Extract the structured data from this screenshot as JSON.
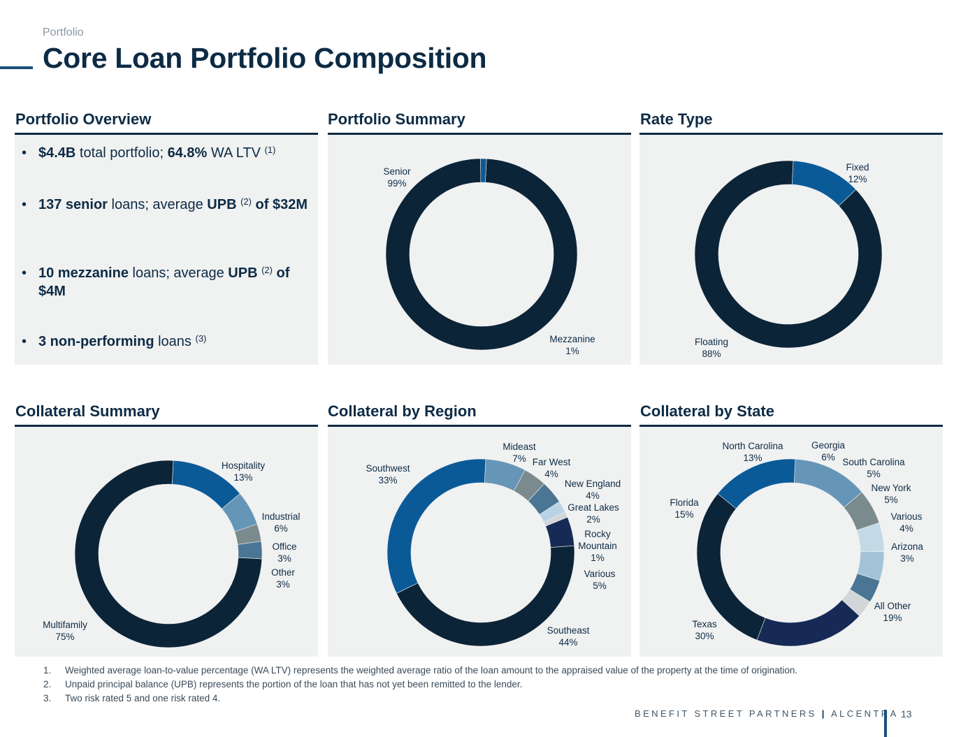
{
  "header": {
    "section": "Portfolio",
    "title": "Core Loan Portfolio Composition"
  },
  "overview": {
    "heading": "Portfolio Overview",
    "bullets": {
      "b1": {
        "p1": "$4.4B",
        "p2": " total portfolio; ",
        "p3": "64.8%",
        "p4": " WA LTV ",
        "note": "(1)"
      },
      "b2": {
        "p1": "137 senior",
        "p2": " loans; average ",
        "p3": "UPB",
        "note": "(2)",
        "p4": " of $32M"
      },
      "b3": {
        "p1": "10 mezzanine",
        "p2": " loans; average ",
        "p3": "UPB",
        "note": "(2)",
        "p4": " of $4M"
      },
      "b4": {
        "p1": "3 non-performing",
        "p2": " loans ",
        "note": "(3)"
      }
    }
  },
  "chart_data": [
    {
      "type": "pie",
      "title": "Portfolio Summary",
      "categories": [
        "Senior",
        "Mezzanine"
      ],
      "values": [
        99,
        1
      ],
      "labels": [
        [
          "Senior",
          "99%"
        ],
        [
          "Mezzanine",
          "1%"
        ]
      ],
      "colors": [
        "#0c2438",
        "#0b5a98"
      ]
    },
    {
      "type": "pie",
      "title": "Rate Type",
      "categories": [
        "Fixed",
        "Floating"
      ],
      "values": [
        12,
        88
      ],
      "labels": [
        [
          "Fixed",
          "12%"
        ],
        [
          "Floating",
          "88%"
        ]
      ],
      "colors": [
        "#0b5a98",
        "#0c2438"
      ]
    },
    {
      "type": "pie",
      "title": "Collateral Summary",
      "categories": [
        "Hospitality",
        "Industrial",
        "Office",
        "Other",
        "Multifamily"
      ],
      "values": [
        13,
        6,
        3,
        3,
        75
      ],
      "labels": [
        [
          "Hospitality",
          "13%"
        ],
        [
          "Industrial",
          "6%"
        ],
        [
          "Office",
          "3%"
        ],
        [
          "Other",
          "3%"
        ],
        [
          "Multifamily",
          "75%"
        ]
      ],
      "colors": [
        "#0b5a98",
        "#6596b8",
        "#7b8a8d",
        "#4b7595",
        "#0c2438"
      ]
    },
    {
      "type": "pie",
      "title": "Collateral by Region",
      "categories": [
        "Mideast",
        "Far West",
        "New England",
        "Great Lakes",
        "Rocky Mountain",
        "Various",
        "Southeast",
        "Southwest"
      ],
      "values": [
        7,
        4,
        4,
        2,
        1,
        5,
        44,
        33
      ],
      "labels": [
        [
          "Mideast",
          "7%"
        ],
        [
          "Far West",
          "4%"
        ],
        [
          "New England",
          "4%"
        ],
        [
          "Great Lakes",
          "2%"
        ],
        [
          "Rocky",
          "Mountain",
          "1%"
        ],
        [
          "Various",
          "5%"
        ],
        [
          "Southeast",
          "44%"
        ],
        [
          "Southwest",
          "33%"
        ]
      ],
      "colors": [
        "#6596b8",
        "#7b8a8d",
        "#4b7595",
        "#b9d3e4",
        "#d2d6d8",
        "#172a56",
        "#0c2438",
        "#0b5a98"
      ]
    },
    {
      "type": "pie",
      "title": "Collateral by State",
      "categories": [
        "North Carolina",
        "Georgia",
        "South Carolina",
        "New York",
        "Various",
        "Arizona",
        "All Other",
        "Texas",
        "Florida"
      ],
      "values": [
        13,
        6,
        5,
        5,
        4,
        3,
        19,
        30,
        15
      ],
      "labels": [
        [
          "North Carolina",
          "13%"
        ],
        [
          "Georgia",
          "6%"
        ],
        [
          "South Carolina",
          "5%"
        ],
        [
          "New York",
          "5%"
        ],
        [
          "Various",
          "4%"
        ],
        [
          "Arizona",
          "3%"
        ],
        [
          "All Other",
          "19%"
        ],
        [
          "Texas",
          "30%"
        ],
        [
          "Florida",
          "15%"
        ]
      ],
      "colors": [
        "#6596b8",
        "#7b8a8d",
        "#c4d9e6",
        "#a3c3d8",
        "#4b7595",
        "#d2d6d8",
        "#172a56",
        "#0c2438",
        "#0b5a98"
      ]
    }
  ],
  "collateral": {
    "heading": "Collateral Summary"
  },
  "footnotes": [
    {
      "num": "1.",
      "text": "Weighted average loan-to-value percentage (WA LTV) represents the weighted average ratio of the loan amount to the appraised value of the property at the time of origination."
    },
    {
      "num": "2.",
      "text": "Unpaid principal balance (UPB) represents the portion of the loan that has not yet been remitted to the lender."
    },
    {
      "num": "3.",
      "text": "Two risk rated 5 and one risk rated 4."
    }
  ],
  "footer": {
    "brand_left": "BENEFIT STREET PARTNERS",
    "separator": "|",
    "brand_right": "ALCENTRA",
    "page": "13"
  }
}
